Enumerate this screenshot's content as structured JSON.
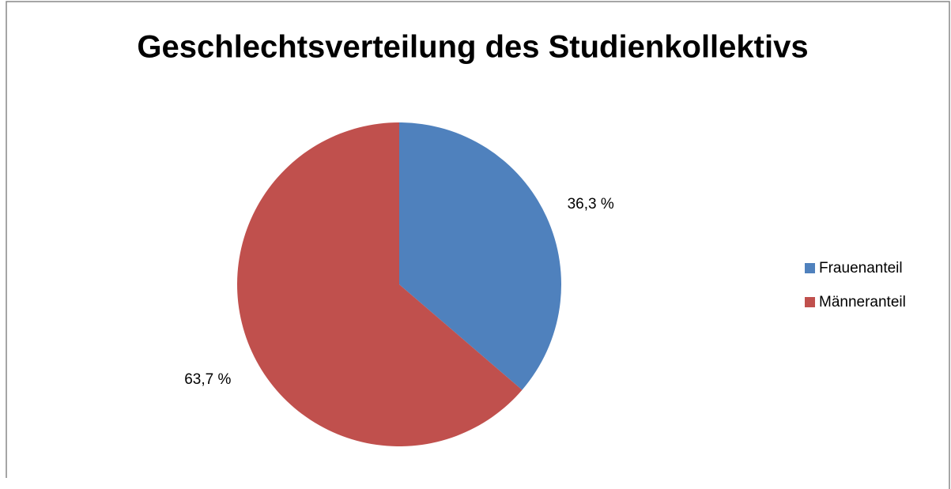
{
  "chart_data": {
    "type": "pie",
    "title": "Geschlechtsverteilung des Studienkollektivs",
    "categories": [
      "Frauenanteil",
      "Männeranteil"
    ],
    "values": [
      36.3,
      63.7
    ],
    "value_labels": [
      "36,3 %",
      "63,7 %"
    ],
    "colors": [
      "#4f81bd",
      "#c0504d"
    ],
    "legend": "right"
  }
}
